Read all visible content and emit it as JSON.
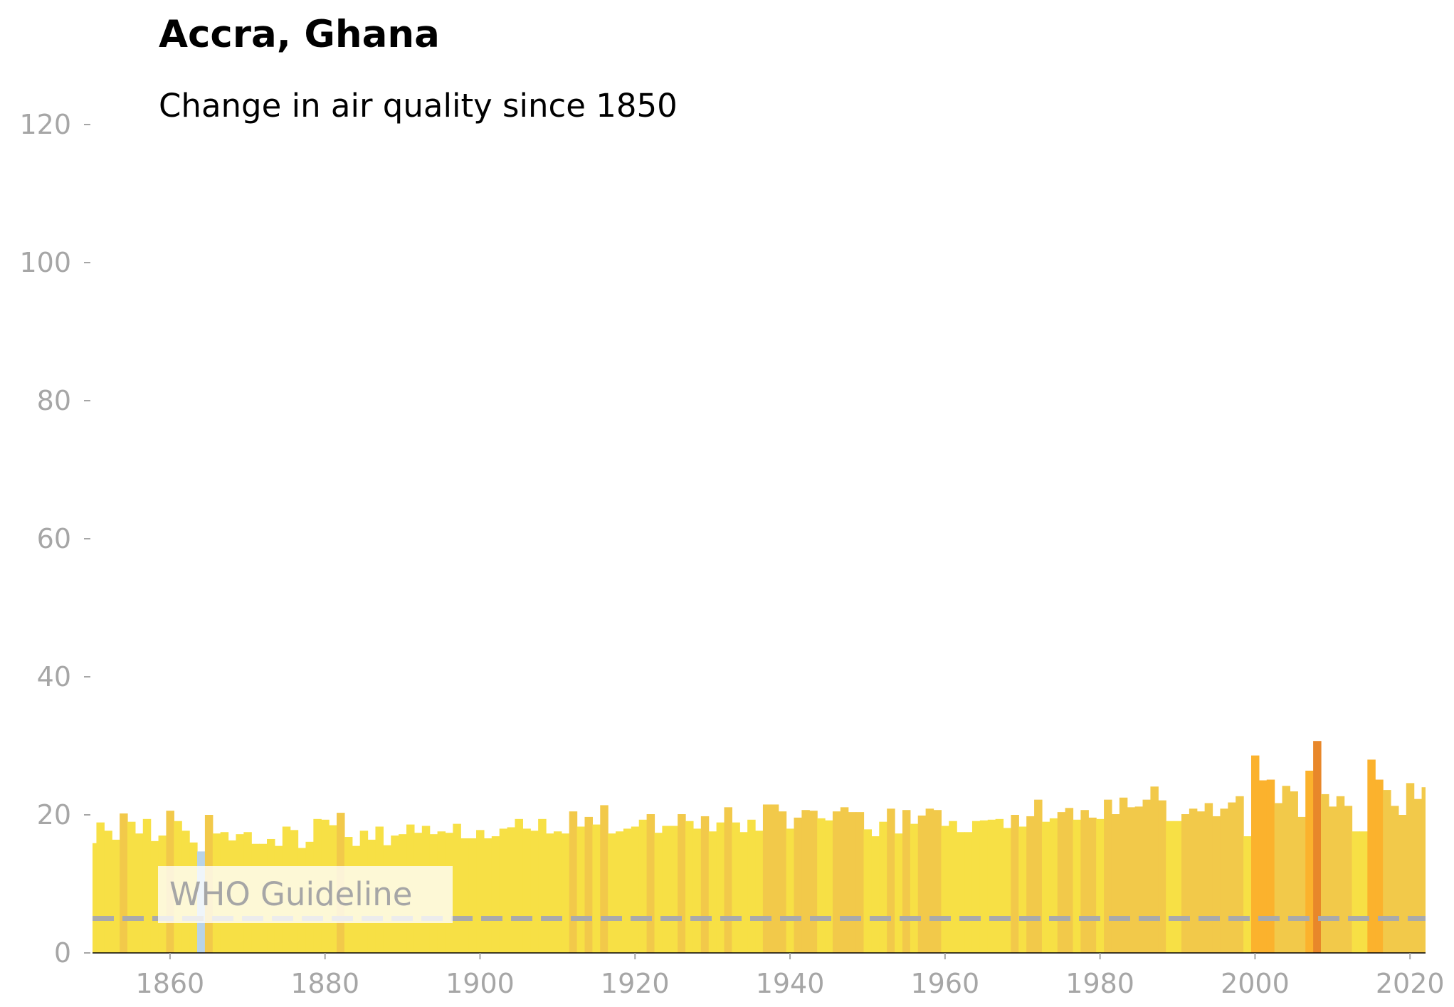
{
  "chart_data": {
    "type": "bar",
    "title": "Accra, Ghana",
    "subtitle": "Change in air quality since 1850",
    "xlabel": "",
    "ylabel": "",
    "xlim": [
      1850,
      2022
    ],
    "ylim": [
      0,
      120
    ],
    "x_ticks": [
      1860,
      1880,
      1900,
      1920,
      1940,
      1960,
      1980,
      2000,
      2020
    ],
    "y_ticks": [
      0,
      20,
      40,
      60,
      80,
      100,
      120
    ],
    "grid": false,
    "reference_line": {
      "label": "WHO Guideline",
      "value": 5,
      "style": "dashed",
      "color": "#aaaaaa"
    },
    "years": [
      1850,
      1851,
      1852,
      1853,
      1854,
      1855,
      1856,
      1857,
      1858,
      1859,
      1860,
      1861,
      1862,
      1863,
      1864,
      1865,
      1866,
      1867,
      1868,
      1869,
      1870,
      1871,
      1872,
      1873,
      1874,
      1875,
      1876,
      1877,
      1878,
      1879,
      1880,
      1881,
      1882,
      1883,
      1884,
      1885,
      1886,
      1887,
      1888,
      1889,
      1890,
      1891,
      1892,
      1893,
      1894,
      1895,
      1896,
      1897,
      1898,
      1899,
      1900,
      1901,
      1902,
      1903,
      1904,
      1905,
      1906,
      1907,
      1908,
      1909,
      1910,
      1911,
      1912,
      1913,
      1914,
      1915,
      1916,
      1917,
      1918,
      1919,
      1920,
      1921,
      1922,
      1923,
      1924,
      1925,
      1926,
      1927,
      1928,
      1929,
      1930,
      1931,
      1932,
      1933,
      1934,
      1935,
      1936,
      1937,
      1938,
      1939,
      1940,
      1941,
      1942,
      1943,
      1944,
      1945,
      1946,
      1947,
      1948,
      1949,
      1950,
      1951,
      1952,
      1953,
      1954,
      1955,
      1956,
      1957,
      1958,
      1959,
      1960,
      1961,
      1962,
      1963,
      1964,
      1965,
      1966,
      1967,
      1968,
      1969,
      1970,
      1971,
      1972,
      1973,
      1974,
      1975,
      1976,
      1977,
      1978,
      1979,
      1980,
      1981,
      1982,
      1983,
      1984,
      1985,
      1986,
      1987,
      1988,
      1989,
      1990,
      1991,
      1992,
      1993,
      1994,
      1995,
      1996,
      1997,
      1998,
      1999,
      2000,
      2001,
      2002,
      2003,
      2004,
      2005,
      2006,
      2007,
      2008,
      2009,
      2010,
      2011,
      2012,
      2013,
      2014,
      2015,
      2016,
      2017,
      2018,
      2019,
      2020,
      2021,
      2022
    ],
    "values": [
      15.9,
      18.9,
      17.7,
      16.4,
      20.2,
      19.0,
      17.3,
      19.4,
      16.2,
      17.0,
      20.6,
      19.1,
      17.7,
      16.0,
      14.7,
      20.0,
      17.3,
      17.5,
      16.3,
      17.2,
      17.5,
      15.8,
      15.8,
      16.5,
      15.5,
      18.3,
      17.8,
      15.2,
      16.1,
      19.4,
      19.3,
      18.5,
      20.3,
      16.8,
      15.5,
      17.7,
      16.4,
      18.3,
      15.6,
      17.0,
      17.2,
      18.6,
      17.4,
      18.4,
      17.2,
      17.6,
      17.4,
      18.7,
      16.6,
      16.6,
      17.8,
      16.6,
      16.9,
      18.0,
      18.2,
      19.4,
      18.0,
      17.7,
      19.4,
      17.3,
      17.6,
      17.3,
      20.5,
      18.3,
      19.7,
      18.6,
      21.4,
      17.3,
      17.6,
      18.0,
      18.3,
      19.3,
      20.1,
      17.4,
      18.4,
      18.4,
      20.1,
      19.1,
      18.0,
      19.8,
      17.6,
      18.9,
      21.1,
      18.9,
      17.5,
      19.3,
      17.7,
      21.5,
      21.5,
      20.5,
      18.0,
      19.6,
      20.7,
      20.6,
      19.5,
      19.2,
      20.5,
      21.1,
      20.4,
      20.4,
      17.9,
      16.9,
      19.0,
      20.9,
      17.3,
      20.7,
      18.7,
      19.9,
      20.9,
      20.7,
      18.4,
      19.1,
      17.5,
      17.5,
      19.1,
      19.2,
      19.3,
      19.4,
      18.1,
      20.0,
      18.3,
      19.8,
      22.2,
      19.0,
      19.5,
      20.4,
      21.0,
      19.3,
      20.7,
      19.6,
      19.4,
      22.2,
      20.1,
      22.5,
      21.1,
      21.2,
      22.2,
      24.1,
      22.1,
      19.1,
      19.1,
      20.1,
      20.9,
      20.5,
      21.7,
      19.8,
      20.9,
      21.8,
      22.7,
      16.9,
      28.6,
      25.0,
      25.1,
      21.7,
      24.2,
      23.4,
      19.7,
      26.4,
      30.7,
      23.0,
      21.2,
      22.7,
      21.3,
      17.6,
      17.6,
      28.0,
      25.1,
      23.6,
      21.3,
      20.0,
      24.6,
      22.3,
      24.0
    ],
    "colors": {
      "light_yellow": "#f7e045",
      "dark_yellow": "#f2c94a",
      "orange": "#fbb22d",
      "deep_orange": "#e8872a",
      "light_blue": "#b8d3e8",
      "guideline": "#aaaaaa",
      "axis_text": "#a6a6a6"
    }
  }
}
